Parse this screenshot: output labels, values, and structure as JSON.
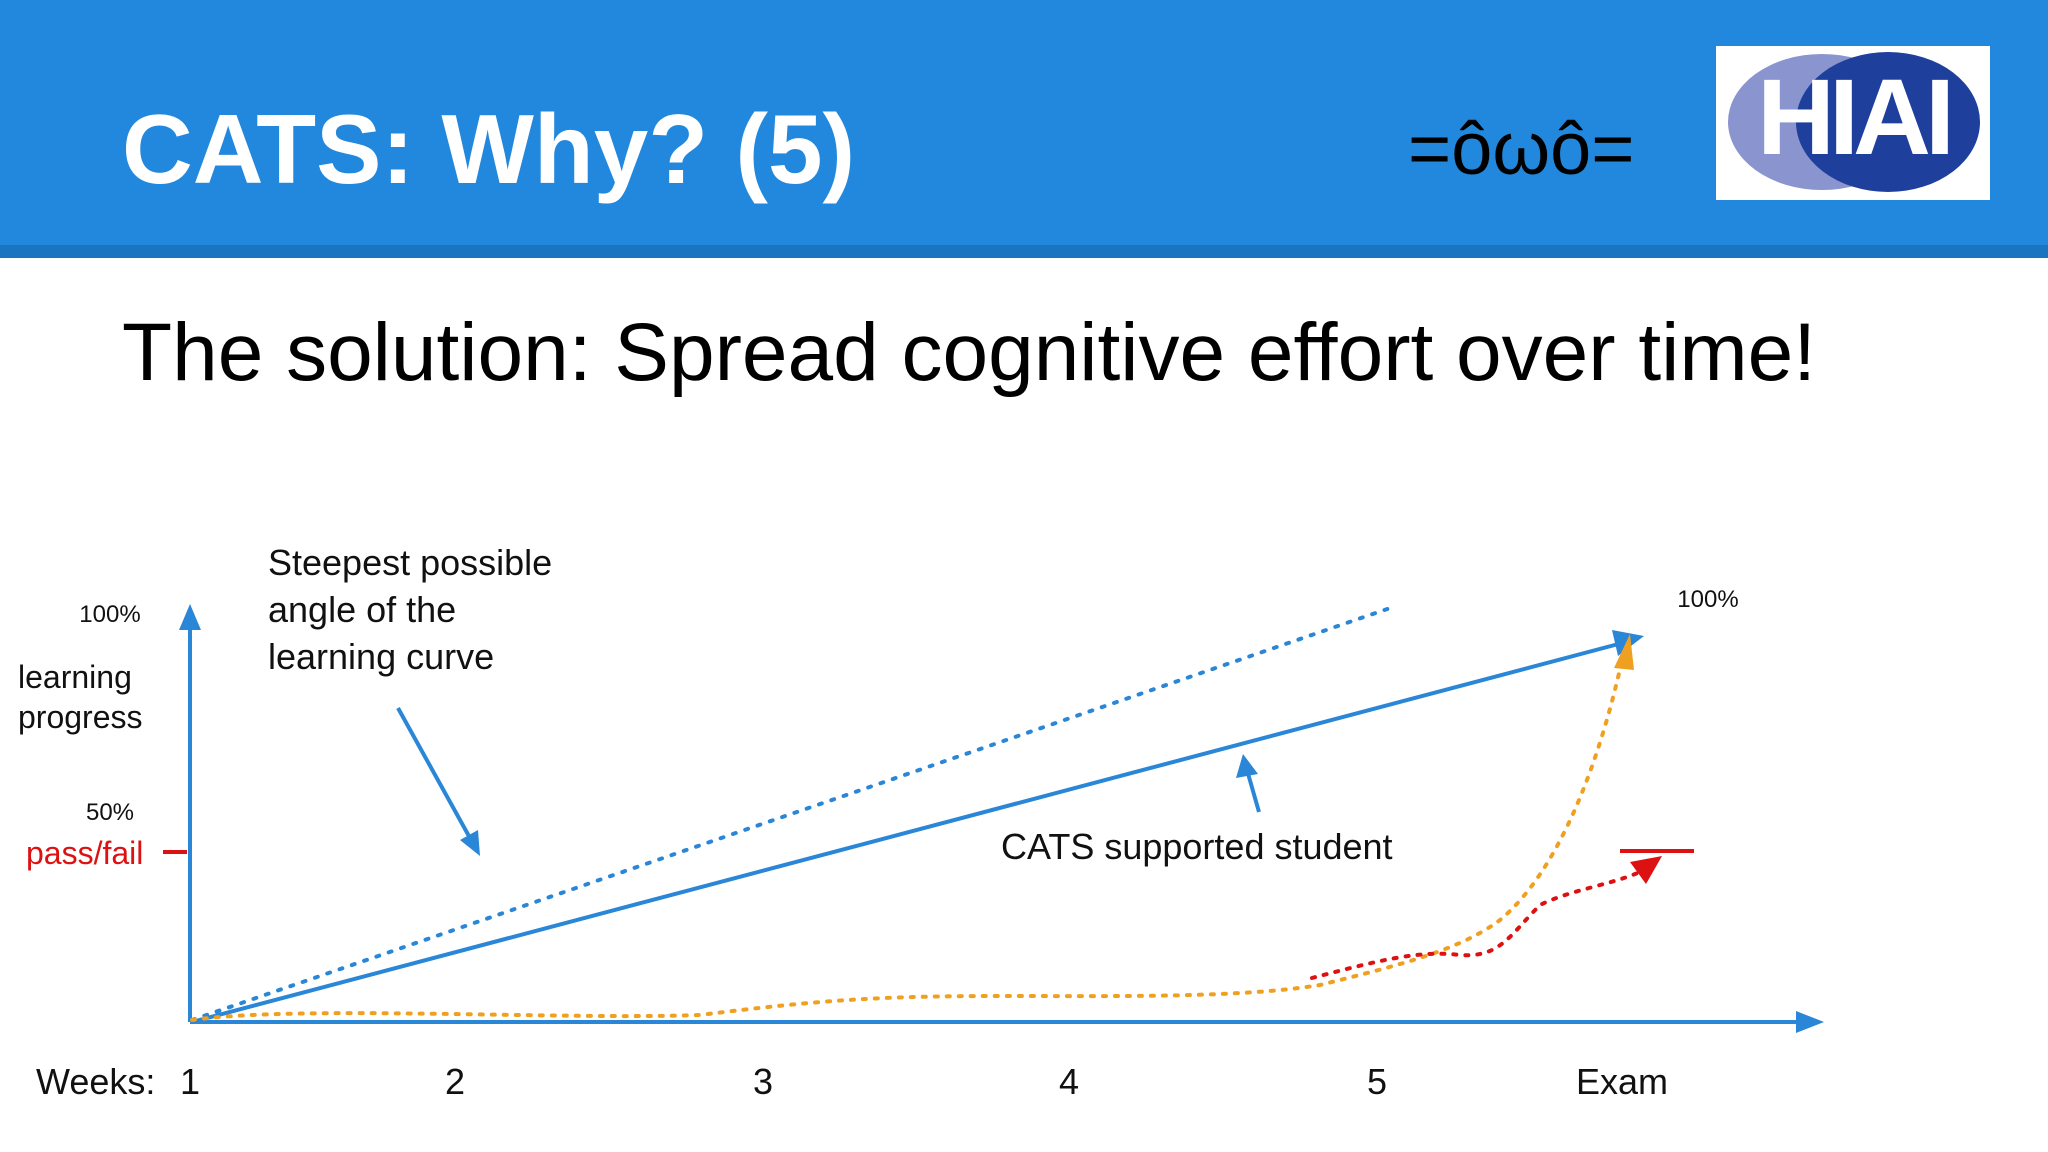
{
  "slide": {
    "title": "CATS: Why? (5)",
    "emoticon": "=ôωô=",
    "subtitle": "The solution: Spread cognitive effort over time!"
  },
  "logo": {
    "text": "HIAI",
    "colors": {
      "left_circle": "#8a95cf",
      "right_circle": "#1e3f9c",
      "letters": "#ffffff"
    }
  },
  "chart_data": {
    "type": "line",
    "x_axis": {
      "label": "Weeks:",
      "ticks": [
        "1",
        "2",
        "3",
        "4",
        "5",
        "Exam"
      ]
    },
    "y_axis": {
      "label_lines": [
        "learning",
        "progress"
      ],
      "tick_100": "100%",
      "tick_50": "50%",
      "pass_fail_label": "pass/fail"
    },
    "annotations": {
      "steepest_lines": [
        "Steepest possible",
        "angle of the",
        "learning curve"
      ],
      "cats_label": "CATS supported student",
      "end_label": "100%"
    },
    "colors": {
      "axis": "#2a86d6",
      "blue_line": "#2a86d6",
      "orange": "#f0a020",
      "red": "#dd1111",
      "text": "#111111"
    }
  }
}
